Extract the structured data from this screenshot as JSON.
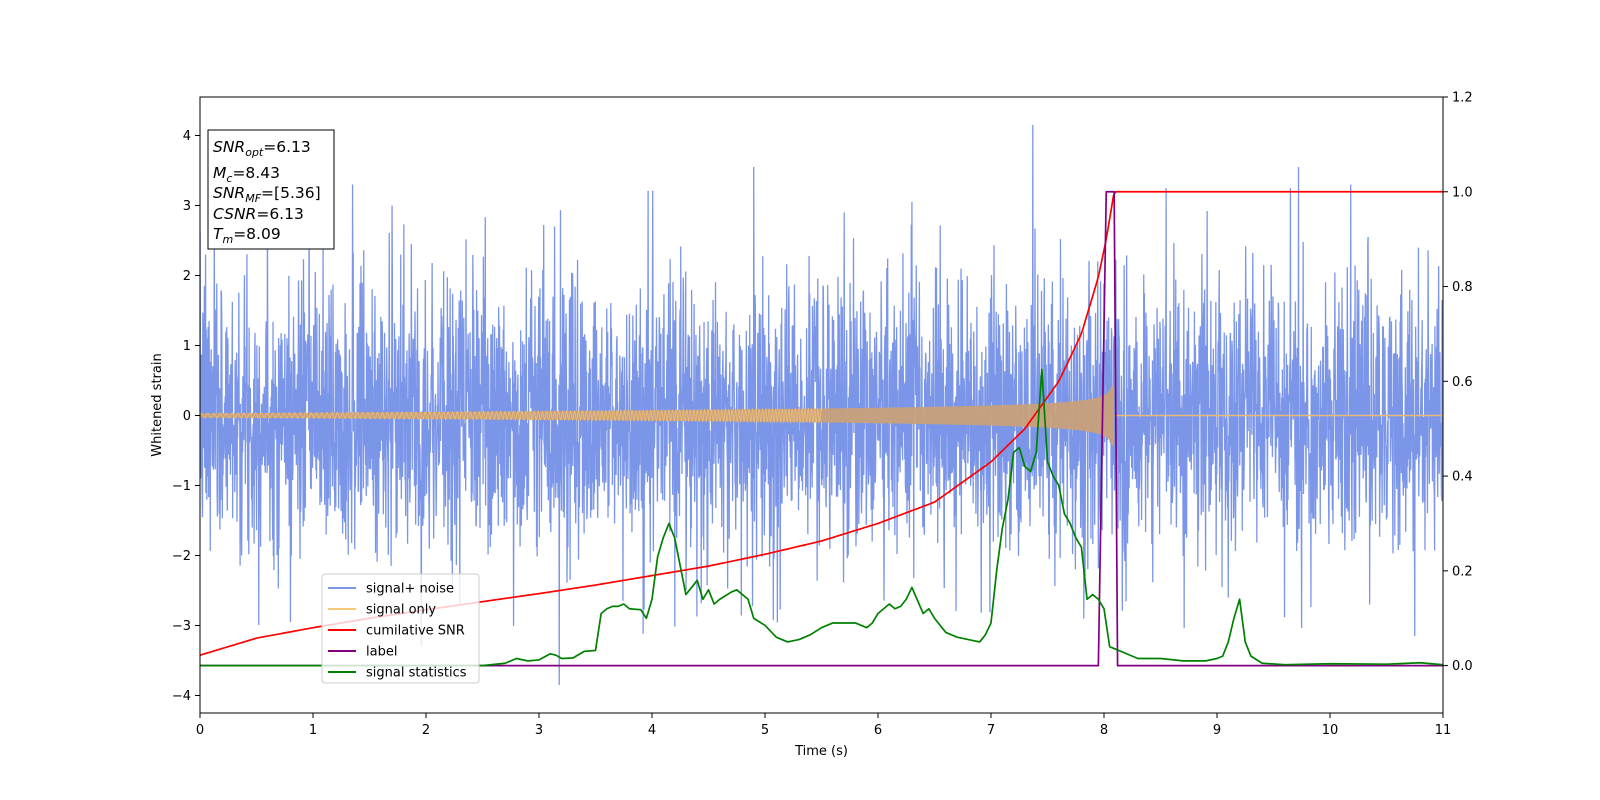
{
  "chart_data": {
    "type": "line",
    "xlabel": "Time (s)",
    "ylabel": "Whitened strain",
    "xlim": [
      0,
      11
    ],
    "ylim": [
      -4.25,
      4.55
    ],
    "y2lim": [
      -0.1,
      1.2
    ],
    "x_ticks": [
      0,
      1,
      2,
      3,
      4,
      5,
      6,
      7,
      8,
      9,
      10,
      11
    ],
    "y_ticks": [
      -4,
      -3,
      -2,
      -1,
      0,
      1,
      2,
      3,
      4
    ],
    "y2_ticks": [
      0.0,
      0.2,
      0.4,
      0.6,
      0.8,
      1.0,
      1.2
    ],
    "grid": false,
    "legend_position": "lower-left",
    "info_box": [
      {
        "base": "SNR",
        "sub": "opt",
        "value": "=6.13"
      },
      {
        "base": "M",
        "sub": "c",
        "value": "=8.43"
      },
      {
        "base": "SNR",
        "sub": "MF",
        "value": "=[5.36]"
      },
      {
        "base": "CSNR",
        "sub": "",
        "value": "=6.13"
      },
      {
        "base": "T",
        "sub": "m",
        "value": "=8.09"
      }
    ],
    "series": [
      {
        "name": "signal+ noise",
        "color": "#7b96e8",
        "axis": "left",
        "style": "noise",
        "sigma": 0.95,
        "seed": 7,
        "spikes": [
          [
            0.05,
            2.3
          ],
          [
            0.8,
            -2.95
          ],
          [
            1.35,
            3.3
          ],
          [
            1.7,
            3.0
          ],
          [
            2.3,
            -2.7
          ],
          [
            3.18,
            -3.85
          ],
          [
            4.3,
            -2.5
          ],
          [
            4.9,
            3.55
          ],
          [
            5.7,
            2.9
          ],
          [
            6.3,
            3.05
          ],
          [
            7.37,
            4.15
          ],
          [
            7.82,
            -2.9
          ],
          [
            8.55,
            3.25
          ],
          [
            9.1,
            -2.6
          ],
          [
            9.65,
            3.25
          ],
          [
            9.72,
            3.55
          ],
          [
            10.35,
            -2.7
          ],
          [
            10.75,
            -3.15
          ]
        ]
      },
      {
        "name": "signal only",
        "color": "#f5c878",
        "axis": "left",
        "style": "chirp",
        "t_merge": 8.09,
        "start_amplitude": 0.03,
        "peak_amplitude": 0.55
      },
      {
        "name": "cumilative SNR",
        "color": "#ff0000",
        "axis": "right",
        "style": "line",
        "x": [
          0,
          0.5,
          1,
          1.5,
          2,
          2.5,
          3,
          3.5,
          4,
          4.5,
          5,
          5.5,
          6,
          6.5,
          7,
          7.3,
          7.6,
          7.8,
          7.95,
          8.02,
          8.09,
          8.2,
          9,
          10,
          11
        ],
        "y": [
          0.022,
          0.058,
          0.08,
          0.1,
          0.118,
          0.135,
          0.152,
          0.17,
          0.19,
          0.21,
          0.235,
          0.263,
          0.3,
          0.345,
          0.43,
          0.5,
          0.6,
          0.7,
          0.82,
          0.9,
          1.0,
          1.0,
          1.0,
          1.0,
          1.0
        ]
      },
      {
        "name": "label",
        "color": "#800080",
        "axis": "right",
        "style": "line",
        "x": [
          0,
          7.95,
          8.02,
          8.09,
          8.12,
          11
        ],
        "y": [
          0,
          0,
          1,
          1,
          0,
          0
        ]
      },
      {
        "name": "signal statistics",
        "color": "#008000",
        "axis": "right",
        "style": "line",
        "x": [
          0,
          2.5,
          2.7,
          2.8,
          2.9,
          3.0,
          3.1,
          3.15,
          3.2,
          3.3,
          3.4,
          3.5,
          3.55,
          3.6,
          3.65,
          3.7,
          3.75,
          3.8,
          3.9,
          3.95,
          4.0,
          4.05,
          4.1,
          4.15,
          4.2,
          4.3,
          4.4,
          4.45,
          4.5,
          4.55,
          4.6,
          4.7,
          4.75,
          4.8,
          4.85,
          4.9,
          5.0,
          5.1,
          5.2,
          5.3,
          5.4,
          5.5,
          5.6,
          5.7,
          5.8,
          5.9,
          5.95,
          6.0,
          6.1,
          6.15,
          6.2,
          6.25,
          6.3,
          6.4,
          6.45,
          6.5,
          6.6,
          6.7,
          6.8,
          6.9,
          6.95,
          7.0,
          7.05,
          7.1,
          7.15,
          7.2,
          7.25,
          7.3,
          7.35,
          7.4,
          7.45,
          7.5,
          7.55,
          7.6,
          7.65,
          7.7,
          7.75,
          7.8,
          7.85,
          7.9,
          7.95,
          8.0,
          8.05,
          8.1,
          8.2,
          8.3,
          8.5,
          8.7,
          8.9,
          9.0,
          9.05,
          9.1,
          9.15,
          9.2,
          9.25,
          9.3,
          9.4,
          9.6,
          10,
          10.5,
          10.8,
          10.9,
          11
        ],
        "y": [
          0,
          0,
          0.005,
          0.015,
          0.01,
          0.012,
          0.025,
          0.022,
          0.015,
          0.016,
          0.03,
          0.032,
          0.11,
          0.12,
          0.125,
          0.125,
          0.13,
          0.12,
          0.118,
          0.1,
          0.14,
          0.23,
          0.27,
          0.3,
          0.27,
          0.15,
          0.18,
          0.14,
          0.16,
          0.13,
          0.14,
          0.155,
          0.16,
          0.15,
          0.14,
          0.1,
          0.085,
          0.06,
          0.05,
          0.055,
          0.065,
          0.08,
          0.09,
          0.09,
          0.09,
          0.08,
          0.09,
          0.11,
          0.13,
          0.12,
          0.125,
          0.14,
          0.165,
          0.11,
          0.12,
          0.1,
          0.07,
          0.06,
          0.055,
          0.05,
          0.065,
          0.09,
          0.2,
          0.29,
          0.35,
          0.45,
          0.46,
          0.42,
          0.41,
          0.45,
          0.625,
          0.43,
          0.4,
          0.38,
          0.32,
          0.3,
          0.27,
          0.25,
          0.14,
          0.15,
          0.14,
          0.12,
          0.04,
          0.035,
          0.025,
          0.015,
          0.015,
          0.01,
          0.01,
          0.015,
          0.02,
          0.05,
          0.1,
          0.14,
          0.05,
          0.02,
          0.005,
          0.002,
          0.004,
          0.003,
          0.006,
          0.004,
          0.002
        ]
      }
    ]
  }
}
